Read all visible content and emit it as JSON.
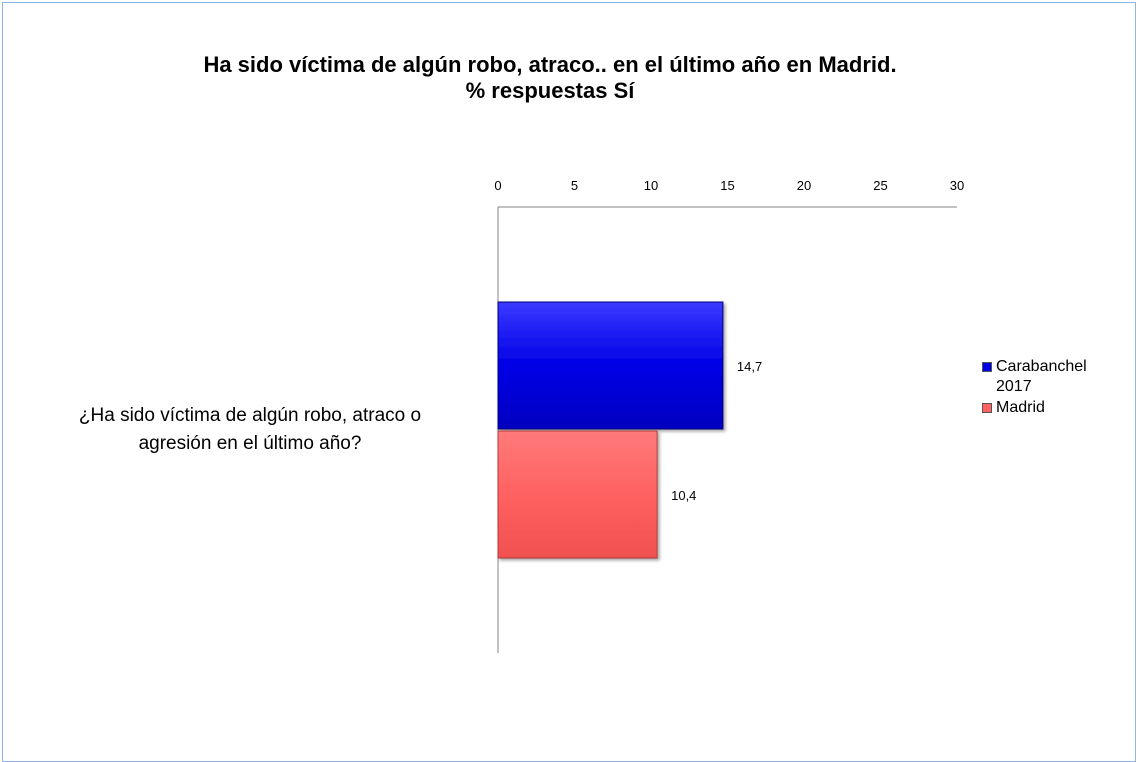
{
  "chart_data": {
    "type": "bar",
    "orientation": "horizontal",
    "title_line1": "Ha  sido víctima de algún robo, atraco.. en el último año en Madrid.",
    "title_line2": "%  respuestas Sí",
    "categories": [
      "¿Ha sido víctima de algún robo, atraco o agresión en el último año?"
    ],
    "category_label_line1": "¿Ha sido víctima de algún robo, atraco o",
    "category_label_line2": "agresión en el último año?",
    "series": [
      {
        "name": "Carabanchel 2017",
        "values": [
          14.7
        ],
        "label": "14,7",
        "color": "#0000e6",
        "border": "#00007a"
      },
      {
        "name": "Madrid",
        "values": [
          10.4
        ],
        "label": "10,4",
        "color": "#ff6161",
        "border": "#b03a3a"
      }
    ],
    "xlim": [
      0,
      30
    ],
    "x_ticks": [
      "0",
      "5",
      "10",
      "15",
      "20",
      "25",
      "30"
    ],
    "axis_position": "top",
    "grid": false,
    "legend": {
      "placement": "right",
      "items": [
        {
          "line1": "Carabanchel",
          "line2": "2017",
          "color": "#0000e6"
        },
        {
          "line1": "Madrid",
          "line2": "",
          "color": "#ff6161"
        }
      ]
    }
  }
}
